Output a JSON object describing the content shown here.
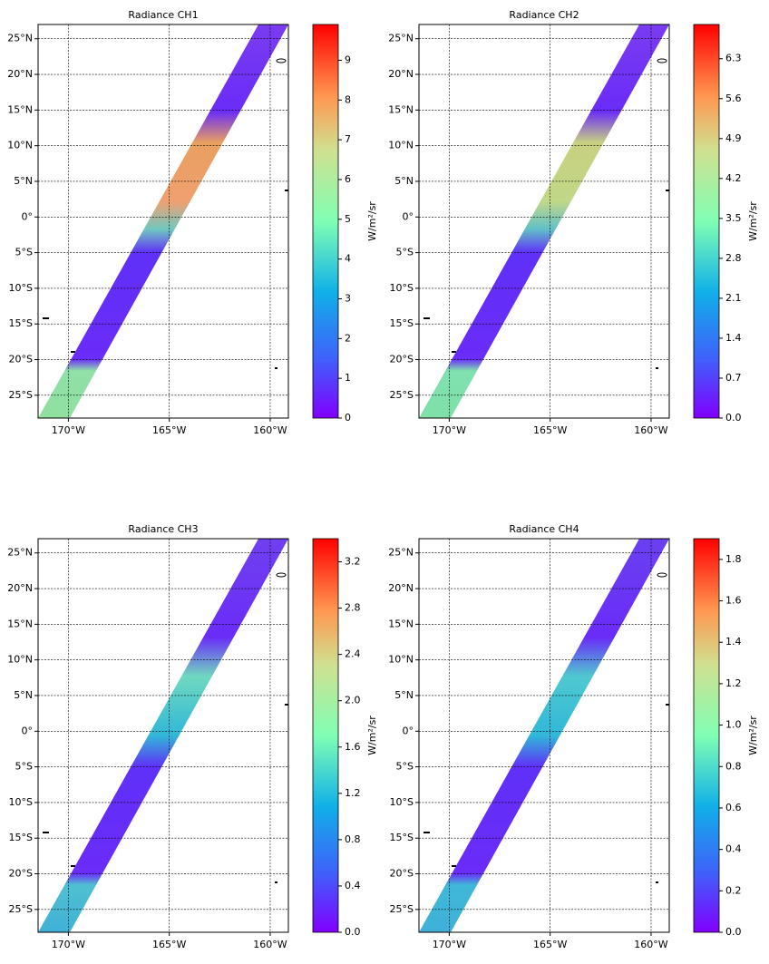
{
  "chart_data": [
    {
      "type": "swath-map",
      "title": "Radiance CH1",
      "xlim": [
        -171.5,
        -159.1
      ],
      "ylim": [
        -28.2,
        27
      ],
      "xticks": [
        {
          "value": -170,
          "label": "170°W"
        },
        {
          "value": -165,
          "label": "165°W"
        },
        {
          "value": -160,
          "label": "160°W"
        }
      ],
      "yticks": [
        {
          "value": 25,
          "label": "25°N"
        },
        {
          "value": 20,
          "label": "20°N"
        },
        {
          "value": 15,
          "label": "15°N"
        },
        {
          "value": 10,
          "label": "10°N"
        },
        {
          "value": 5,
          "label": "5°N"
        },
        {
          "value": 0,
          "label": "0°"
        },
        {
          "value": -5,
          "label": "5°S"
        },
        {
          "value": -10,
          "label": "10°S"
        },
        {
          "value": -15,
          "label": "15°S"
        },
        {
          "value": -20,
          "label": "20°S"
        },
        {
          "value": -25,
          "label": "25°S"
        }
      ],
      "colorbar": {
        "label": "W/m²/sr",
        "lim": [
          0,
          9.9
        ],
        "ticks": [
          0,
          1,
          2,
          3,
          4,
          5,
          6,
          7,
          8,
          9
        ]
      }
    },
    {
      "type": "swath-map",
      "title": "Radiance CH2",
      "xlim": [
        -171.5,
        -159.1
      ],
      "ylim": [
        -28.2,
        27
      ],
      "xticks": [
        {
          "value": -170,
          "label": "170°W"
        },
        {
          "value": -165,
          "label": "165°W"
        },
        {
          "value": -160,
          "label": "160°W"
        }
      ],
      "yticks": [
        {
          "value": 25,
          "label": "25°N"
        },
        {
          "value": 20,
          "label": "20°N"
        },
        {
          "value": 15,
          "label": "15°N"
        },
        {
          "value": 10,
          "label": "10°N"
        },
        {
          "value": 5,
          "label": "5°N"
        },
        {
          "value": 0,
          "label": "0°"
        },
        {
          "value": -5,
          "label": "5°S"
        },
        {
          "value": -10,
          "label": "10°S"
        },
        {
          "value": -15,
          "label": "15°S"
        },
        {
          "value": -20,
          "label": "20°S"
        },
        {
          "value": -25,
          "label": "25°S"
        }
      ],
      "colorbar": {
        "label": "W/m²/sr",
        "lim": [
          0,
          6.9
        ],
        "ticks": [
          {
            "value": 0,
            "label": "0.0"
          },
          0.7,
          1.4,
          2.1,
          2.8,
          3.5,
          4.2,
          4.9,
          5.6,
          6.3
        ]
      }
    },
    {
      "type": "swath-map",
      "title": "Radiance CH3",
      "xlim": [
        -171.5,
        -159.1
      ],
      "ylim": [
        -28.2,
        27
      ],
      "xticks": [
        {
          "value": -170,
          "label": "170°W"
        },
        {
          "value": -165,
          "label": "165°W"
        },
        {
          "value": -160,
          "label": "160°W"
        }
      ],
      "yticks": [
        {
          "value": 25,
          "label": "25°N"
        },
        {
          "value": 20,
          "label": "20°N"
        },
        {
          "value": 15,
          "label": "15°N"
        },
        {
          "value": 10,
          "label": "10°N"
        },
        {
          "value": 5,
          "label": "5°N"
        },
        {
          "value": 0,
          "label": "0°"
        },
        {
          "value": -5,
          "label": "5°S"
        },
        {
          "value": -10,
          "label": "10°S"
        },
        {
          "value": -15,
          "label": "15°S"
        },
        {
          "value": -20,
          "label": "20°S"
        },
        {
          "value": -25,
          "label": "25°S"
        }
      ],
      "colorbar": {
        "label": "W/m²/sr",
        "lim": [
          0,
          3.4
        ],
        "ticks": [
          {
            "value": 0,
            "label": "0.0"
          },
          0.4,
          0.8,
          1.2,
          1.6,
          {
            "value": 2,
            "label": "2.0"
          },
          2.4,
          2.8,
          3.2
        ]
      }
    },
    {
      "type": "swath-map",
      "title": "Radiance CH4",
      "xlim": [
        -171.5,
        -159.1
      ],
      "ylim": [
        -28.2,
        27
      ],
      "xticks": [
        {
          "value": -170,
          "label": "170°W"
        },
        {
          "value": -165,
          "label": "165°W"
        },
        {
          "value": -160,
          "label": "160°W"
        }
      ],
      "yticks": [
        {
          "value": 25,
          "label": "25°N"
        },
        {
          "value": 20,
          "label": "20°N"
        },
        {
          "value": 15,
          "label": "15°N"
        },
        {
          "value": 10,
          "label": "10°N"
        },
        {
          "value": 5,
          "label": "5°N"
        },
        {
          "value": 0,
          "label": "0°"
        },
        {
          "value": -5,
          "label": "5°S"
        },
        {
          "value": -10,
          "label": "10°S"
        },
        {
          "value": -15,
          "label": "15°S"
        },
        {
          "value": -20,
          "label": "20°S"
        },
        {
          "value": -25,
          "label": "25°S"
        }
      ],
      "colorbar": {
        "label": "W/m²/sr",
        "lim": [
          0,
          1.9
        ],
        "ticks": [
          {
            "value": 0,
            "label": "0.0"
          },
          0.2,
          0.4,
          0.6,
          0.8,
          {
            "value": 1,
            "label": "1.0"
          },
          1.2,
          1.4,
          1.6,
          1.8
        ]
      }
    }
  ]
}
